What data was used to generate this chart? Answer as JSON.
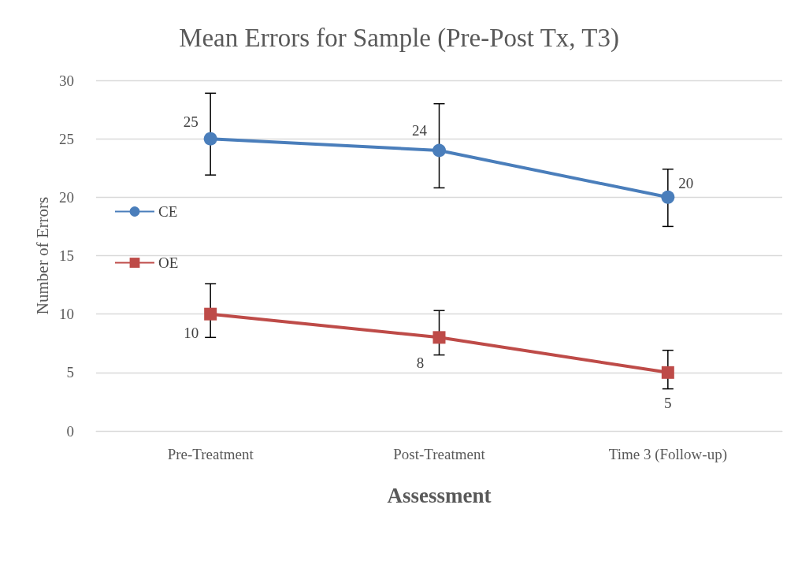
{
  "chart_data": {
    "type": "line",
    "title": "Mean Errors for Sample (Pre-Post Tx, T3)",
    "xlabel": "Assessment",
    "ylabel": "Number of Errors",
    "categories": [
      "Pre-Treatment",
      "Post-Treatment",
      "Time 3 (Follow-up)"
    ],
    "series": [
      {
        "name": "CE",
        "color": "#4a7ebb",
        "marker": "circle",
        "values": [
          25,
          24,
          20
        ],
        "errors": [
          [
            21.9,
            28.9
          ],
          [
            20.8,
            28
          ],
          [
            17.5,
            22.4
          ]
        ]
      },
      {
        "name": "OE",
        "color": "#be4b48",
        "marker": "square",
        "values": [
          10,
          8,
          5
        ],
        "errors": [
          [
            8,
            12.6
          ],
          [
            6.5,
            10.3
          ],
          [
            3.6,
            6.9
          ]
        ]
      }
    ],
    "ylim": [
      0,
      30
    ],
    "yticks": [
      0,
      5,
      10,
      15,
      20,
      25,
      30
    ],
    "grid": "y",
    "legend": "left",
    "data_labels": true
  }
}
